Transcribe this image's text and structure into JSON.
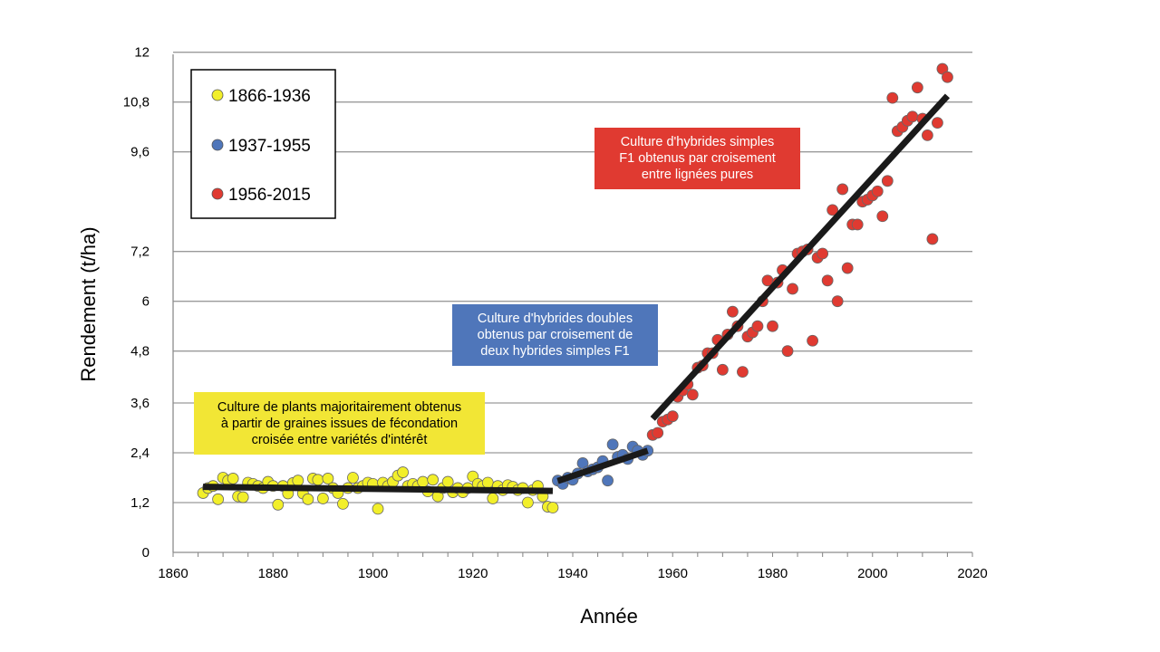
{
  "chart_data": {
    "type": "scatter",
    "xlabel": "Année",
    "ylabel": "Rendement (t/ha)",
    "xlim": [
      1860,
      2020
    ],
    "ylim": [
      0,
      12
    ],
    "x_ticks": [
      "1860",
      "1880",
      "1900",
      "1920",
      "1940",
      "1960",
      "1980",
      "2000",
      "2020"
    ],
    "y_ticks": [
      "0",
      "1,2",
      "2,4",
      "3,6",
      "4,8",
      "6",
      "7,2",
      "9,6",
      "10,8",
      "12"
    ],
    "y_tick_values": [
      0,
      1.2,
      2.4,
      3.6,
      4.85,
      6.05,
      7.25,
      9.65,
      10.85,
      12.05
    ],
    "grid": true,
    "legend": "top-left",
    "series": [
      {
        "name": "1866-1936",
        "color": "#f2ef2a",
        "points": [
          [
            1866,
            1.43
          ],
          [
            1867,
            1.55
          ],
          [
            1868,
            1.6
          ],
          [
            1869,
            1.28
          ],
          [
            1870,
            1.8
          ],
          [
            1871,
            1.73
          ],
          [
            1872,
            1.78
          ],
          [
            1873,
            1.35
          ],
          [
            1874,
            1.33
          ],
          [
            1875,
            1.68
          ],
          [
            1876,
            1.65
          ],
          [
            1877,
            1.6
          ],
          [
            1878,
            1.55
          ],
          [
            1879,
            1.7
          ],
          [
            1880,
            1.6
          ],
          [
            1881,
            1.15
          ],
          [
            1882,
            1.6
          ],
          [
            1883,
            1.42
          ],
          [
            1884,
            1.67
          ],
          [
            1885,
            1.73
          ],
          [
            1886,
            1.42
          ],
          [
            1887,
            1.28
          ],
          [
            1888,
            1.78
          ],
          [
            1889,
            1.75
          ],
          [
            1890,
            1.3
          ],
          [
            1891,
            1.78
          ],
          [
            1892,
            1.55
          ],
          [
            1893,
            1.43
          ],
          [
            1894,
            1.17
          ],
          [
            1895,
            1.55
          ],
          [
            1896,
            1.8
          ],
          [
            1897,
            1.55
          ],
          [
            1898,
            1.6
          ],
          [
            1899,
            1.68
          ],
          [
            1900,
            1.65
          ],
          [
            1901,
            1.05
          ],
          [
            1902,
            1.68
          ],
          [
            1903,
            1.6
          ],
          [
            1904,
            1.7
          ],
          [
            1905,
            1.85
          ],
          [
            1906,
            1.93
          ],
          [
            1907,
            1.6
          ],
          [
            1908,
            1.65
          ],
          [
            1909,
            1.6
          ],
          [
            1910,
            1.7
          ],
          [
            1911,
            1.47
          ],
          [
            1912,
            1.75
          ],
          [
            1913,
            1.35
          ],
          [
            1914,
            1.55
          ],
          [
            1915,
            1.7
          ],
          [
            1916,
            1.45
          ],
          [
            1917,
            1.55
          ],
          [
            1918,
            1.45
          ],
          [
            1919,
            1.55
          ],
          [
            1920,
            1.83
          ],
          [
            1921,
            1.65
          ],
          [
            1922,
            1.6
          ],
          [
            1923,
            1.68
          ],
          [
            1924,
            1.3
          ],
          [
            1925,
            1.6
          ],
          [
            1926,
            1.5
          ],
          [
            1927,
            1.62
          ],
          [
            1928,
            1.58
          ],
          [
            1929,
            1.5
          ],
          [
            1930,
            1.55
          ],
          [
            1931,
            1.2
          ],
          [
            1932,
            1.5
          ],
          [
            1933,
            1.6
          ],
          [
            1934,
            1.35
          ],
          [
            1935,
            1.1
          ],
          [
            1936,
            1.08
          ]
        ]
      },
      {
        "name": "1937-1955",
        "color": "#4f76ba",
        "points": [
          [
            1937,
            1.73
          ],
          [
            1938,
            1.65
          ],
          [
            1939,
            1.8
          ],
          [
            1940,
            1.75
          ],
          [
            1941,
            1.9
          ],
          [
            1942,
            2.15
          ],
          [
            1943,
            1.95
          ],
          [
            1944,
            2.0
          ],
          [
            1945,
            2.05
          ],
          [
            1946,
            2.2
          ],
          [
            1947,
            1.73
          ],
          [
            1948,
            2.6
          ],
          [
            1949,
            2.3
          ],
          [
            1950,
            2.35
          ],
          [
            1951,
            2.25
          ],
          [
            1952,
            2.55
          ],
          [
            1953,
            2.45
          ],
          [
            1954,
            2.35
          ],
          [
            1955,
            2.45
          ]
        ]
      },
      {
        "name": "1956-2015",
        "color": "#e03a31",
        "points": [
          [
            1956,
            2.83
          ],
          [
            1957,
            2.88
          ],
          [
            1958,
            3.15
          ],
          [
            1959,
            3.2
          ],
          [
            1960,
            3.28
          ],
          [
            1961,
            3.75
          ],
          [
            1962,
            3.9
          ],
          [
            1963,
            4.05
          ],
          [
            1964,
            3.8
          ],
          [
            1965,
            4.45
          ],
          [
            1966,
            4.5
          ],
          [
            1967,
            4.8
          ],
          [
            1968,
            4.8
          ],
          [
            1969,
            5.12
          ],
          [
            1970,
            4.4
          ],
          [
            1971,
            5.25
          ],
          [
            1972,
            5.8
          ],
          [
            1973,
            5.45
          ],
          [
            1974,
            4.35
          ],
          [
            1975,
            5.2
          ],
          [
            1976,
            5.3
          ],
          [
            1977,
            5.45
          ],
          [
            1978,
            6.05
          ],
          [
            1979,
            6.55
          ],
          [
            1980,
            5.45
          ],
          [
            1981,
            6.5
          ],
          [
            1982,
            6.8
          ],
          [
            1983,
            4.85
          ],
          [
            1984,
            6.35
          ],
          [
            1985,
            7.2
          ],
          [
            1986,
            7.25
          ],
          [
            1987,
            7.3
          ],
          [
            1988,
            5.1
          ],
          [
            1989,
            7.1
          ],
          [
            1990,
            7.2
          ],
          [
            1991,
            6.55
          ],
          [
            1992,
            8.25
          ],
          [
            1993,
            6.05
          ],
          [
            1994,
            8.75
          ],
          [
            1995,
            6.85
          ],
          [
            1996,
            7.9
          ],
          [
            1997,
            7.9
          ],
          [
            1998,
            8.45
          ],
          [
            1999,
            8.5
          ],
          [
            2000,
            8.6
          ],
          [
            2001,
            8.7
          ],
          [
            2002,
            8.1
          ],
          [
            2003,
            8.95
          ],
          [
            2004,
            10.95
          ],
          [
            2005,
            10.15
          ],
          [
            2006,
            10.25
          ],
          [
            2007,
            10.4
          ],
          [
            2008,
            10.5
          ],
          [
            2009,
            11.2
          ],
          [
            2010,
            10.45
          ],
          [
            2011,
            10.05
          ],
          [
            2012,
            7.55
          ],
          [
            2013,
            10.35
          ],
          [
            2014,
            11.65
          ],
          [
            2015,
            11.45
          ]
        ]
      }
    ],
    "trend_lines": [
      {
        "x": [
          1866,
          1936
        ],
        "y": [
          1.58,
          1.48
        ]
      },
      {
        "x": [
          1937,
          1955
        ],
        "y": [
          1.72,
          2.45
        ]
      },
      {
        "x": [
          1956,
          2015
        ],
        "y": [
          3.22,
          11.0
        ]
      }
    ],
    "annotations": [
      {
        "text": "Culture de plants majoritairement obtenus\nà partir de graines issues de fécondation\ncroisée entre variétés d'intérêt",
        "color": "#f2e635"
      },
      {
        "text": "Culture  d'hybrides doubles\nobtenus par croisement de\ndeux hybrides simples F1",
        "color": "#4f76ba"
      },
      {
        "text": "Culture  d'hybrides simples\nF1 obtenus par croisement\nentre lignées pures",
        "color": "#e03a31"
      }
    ]
  }
}
